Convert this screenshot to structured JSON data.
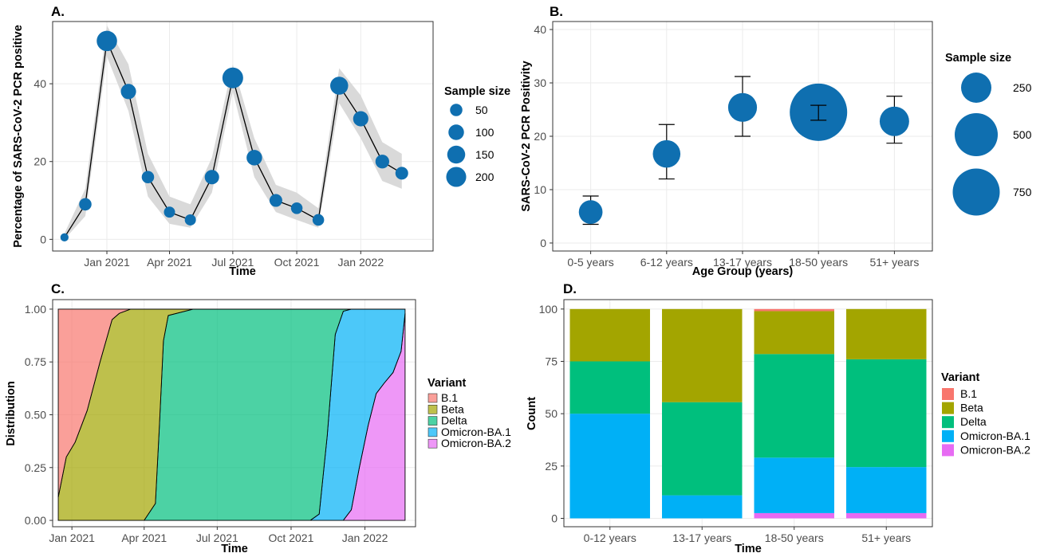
{
  "colors": {
    "point": "#0f6fb0",
    "ribbon": "#d9d9d9",
    "grid": "#ebebeb",
    "B.1": "#f8766d",
    "Beta": "#a3a500",
    "Delta": "#00bf7d",
    "Omicron-BA.1": "#00b0f6",
    "Omicron-BA.2": "#e76bf3"
  },
  "chart_data": [
    {
      "panel": "A.",
      "type": "line",
      "xlabel": "Time",
      "ylabel": "Percentage of SARS-CoV-2 PCR positive",
      "xticks": [
        {
          "date": "2021-01-01",
          "label": "Jan 2021"
        },
        {
          "date": "2021-04-01",
          "label": "Apr 2021"
        },
        {
          "date": "2021-07-01",
          "label": "Jul 2021"
        },
        {
          "date": "2021-10-01",
          "label": "Oct 2021"
        },
        {
          "date": "2022-01-01",
          "label": "Jan 2022"
        }
      ],
      "xlim": [
        "2020-10-15",
        "2022-04-15"
      ],
      "ylim": [
        -3,
        56
      ],
      "yticks": [
        0,
        20,
        40
      ],
      "points": [
        {
          "x": "2020-11-01",
          "y": 0.5,
          "lo": 0,
          "hi": 1.5,
          "size": 10
        },
        {
          "x": "2020-12-01",
          "y": 9,
          "lo": 6,
          "hi": 13,
          "size": 50
        },
        {
          "x": "2021-01-01",
          "y": 51,
          "lo": 47,
          "hi": 55,
          "size": 210
        },
        {
          "x": "2021-02-01",
          "y": 38,
          "lo": 33,
          "hi": 45,
          "size": 95
        },
        {
          "x": "2021-03-01",
          "y": 16,
          "lo": 11,
          "hi": 22,
          "size": 50
        },
        {
          "x": "2021-04-01",
          "y": 7,
          "lo": 4,
          "hi": 11,
          "size": 35
        },
        {
          "x": "2021-05-01",
          "y": 5,
          "lo": 3,
          "hi": 9,
          "size": 35
        },
        {
          "x": "2021-06-01",
          "y": 16,
          "lo": 12,
          "hi": 21,
          "size": 80
        },
        {
          "x": "2021-07-01",
          "y": 41.5,
          "lo": 38,
          "hi": 45,
          "size": 220
        },
        {
          "x": "2021-08-01",
          "y": 21,
          "lo": 16,
          "hi": 26,
          "size": 100
        },
        {
          "x": "2021-09-01",
          "y": 10,
          "lo": 7,
          "hi": 14,
          "size": 55
        },
        {
          "x": "2021-10-01",
          "y": 8,
          "lo": 5,
          "hi": 12,
          "size": 40
        },
        {
          "x": "2021-11-01",
          "y": 5,
          "lo": 3,
          "hi": 8,
          "size": 40
        },
        {
          "x": "2021-12-01",
          "y": 39.5,
          "lo": 35,
          "hi": 44,
          "size": 150
        },
        {
          "x": "2022-01-01",
          "y": 31,
          "lo": 26,
          "hi": 37,
          "size": 95
        },
        {
          "x": "2022-02-01",
          "y": 20,
          "lo": 15,
          "hi": 25,
          "size": 70
        },
        {
          "x": "2022-03-01",
          "y": 17,
          "lo": 13,
          "hi": 22,
          "size": 55
        }
      ],
      "legend": {
        "title": "Sample size",
        "placement": "right",
        "entries": [
          50,
          100,
          150,
          200
        ]
      }
    },
    {
      "panel": "B.",
      "type": "scatter",
      "xlabel": "Age Group (years)",
      "ylabel": "SARS-CoV-2 PCR Positivity",
      "ylim": [
        -1.5,
        41.5
      ],
      "yticks": [
        0,
        10,
        20,
        30,
        40
      ],
      "categories": [
        "0-5 years",
        "6-12 years",
        "13-17 years",
        "18-50 years",
        "51+ years"
      ],
      "values": [
        5.8,
        16.7,
        25.4,
        24.5,
        22.8
      ],
      "ci_low": [
        3.5,
        12,
        20,
        23,
        18.7
      ],
      "ci_high": [
        8.8,
        22.2,
        31.2,
        25.8,
        27.5
      ],
      "sample_sizes": [
        60,
        110,
        130,
        1000,
        140
      ],
      "legend": {
        "title": "Sample size",
        "placement": "right",
        "entries": [
          250,
          500,
          750
        ]
      }
    },
    {
      "panel": "C.",
      "type": "area",
      "xlabel": "Time",
      "ylabel": "Distribution",
      "xticks": [
        {
          "date": "2021-01-01",
          "label": "Jan 2021"
        },
        {
          "date": "2021-04-01",
          "label": "Apr 2021"
        },
        {
          "date": "2021-07-01",
          "label": "Jul 2021"
        },
        {
          "date": "2021-10-01",
          "label": "Oct 2021"
        },
        {
          "date": "2022-01-01",
          "label": "Jan 2022"
        }
      ],
      "xlim": [
        "2020-12-08",
        "2022-03-05"
      ],
      "ylim": [
        -0.03,
        1.045
      ],
      "yticks": [
        "0.00",
        "0.25",
        "0.50",
        "0.75",
        "1.00"
      ],
      "x": [
        "2020-12-15",
        "2020-12-25",
        "2021-01-05",
        "2021-01-20",
        "2021-02-05",
        "2021-02-20",
        "2021-03-01",
        "2021-03-15",
        "2021-04-01",
        "2021-04-15",
        "2021-04-20",
        "2021-04-25",
        "2021-05-01",
        "2021-06-01",
        "2021-09-01",
        "2021-10-25",
        "2021-11-05",
        "2021-11-15",
        "2021-11-25",
        "2021-12-05",
        "2021-12-15",
        "2021-12-25",
        "2022-01-05",
        "2022-01-15",
        "2022-01-25",
        "2022-02-05",
        "2022-02-15",
        "2022-02-20"
      ],
      "series": [
        {
          "name": "B.1",
          "values": [
            0.89,
            0.7,
            0.63,
            0.48,
            0.25,
            0.05,
            0.02,
            0,
            0,
            0,
            0,
            0,
            0,
            0,
            0,
            0,
            0,
            0,
            0,
            0,
            0,
            0,
            0,
            0,
            0,
            0,
            0,
            0
          ]
        },
        {
          "name": "Beta",
          "values": [
            0.11,
            0.3,
            0.37,
            0.52,
            0.75,
            0.95,
            0.98,
            1,
            1,
            0.92,
            0.55,
            0.15,
            0.03,
            0,
            0,
            0,
            0,
            0,
            0,
            0,
            0,
            0,
            0,
            0,
            0,
            0,
            0,
            0
          ]
        },
        {
          "name": "Delta",
          "values": [
            0,
            0,
            0,
            0,
            0,
            0,
            0,
            0,
            0,
            0.08,
            0.45,
            0.85,
            0.97,
            1,
            1,
            1,
            0.97,
            0.6,
            0.12,
            0.01,
            0,
            0,
            0,
            0,
            0,
            0,
            0,
            0
          ]
        },
        {
          "name": "Omicron-BA.1",
          "values": [
            0,
            0,
            0,
            0,
            0,
            0,
            0,
            0,
            0,
            0,
            0,
            0,
            0,
            0,
            0,
            0,
            0.03,
            0.4,
            0.88,
            0.99,
            0.95,
            0.75,
            0.55,
            0.4,
            0.35,
            0.3,
            0.2,
            0.02
          ]
        },
        {
          "name": "Omicron-BA.2",
          "values": [
            0,
            0,
            0,
            0,
            0,
            0,
            0,
            0,
            0,
            0,
            0,
            0,
            0,
            0,
            0,
            0,
            0,
            0,
            0,
            0,
            0.05,
            0.25,
            0.45,
            0.6,
            0.65,
            0.7,
            0.8,
            0.98
          ]
        }
      ],
      "legend": {
        "title": "Variant",
        "placement": "right",
        "entries": [
          "B.1",
          "Beta",
          "Delta",
          "Omicron-BA.1",
          "Omicron-BA.2"
        ]
      }
    },
    {
      "panel": "D.",
      "type": "bar",
      "stacked": true,
      "xlabel": "Time",
      "ylabel": "Count",
      "ylim": [
        -4,
        104.5
      ],
      "yticks": [
        0,
        25,
        50,
        75,
        100
      ],
      "categories": [
        "0-12 years",
        "13-17 years",
        "18-50 years",
        "51+ years"
      ],
      "series": [
        {
          "name": "Omicron-BA.2",
          "values": [
            0,
            0,
            2.5,
            2.5
          ]
        },
        {
          "name": "Omicron-BA.1",
          "values": [
            50,
            11,
            26.5,
            22
          ]
        },
        {
          "name": "Delta",
          "values": [
            25,
            44.5,
            49.5,
            51.5
          ]
        },
        {
          "name": "Beta",
          "values": [
            25,
            44.5,
            20.5,
            24
          ]
        },
        {
          "name": "B.1",
          "values": [
            0,
            0,
            1,
            0
          ]
        }
      ],
      "legend": {
        "title": "Variant",
        "placement": "right",
        "entries": [
          "B.1",
          "Beta",
          "Delta",
          "Omicron-BA.1",
          "Omicron-BA.2"
        ]
      }
    }
  ]
}
